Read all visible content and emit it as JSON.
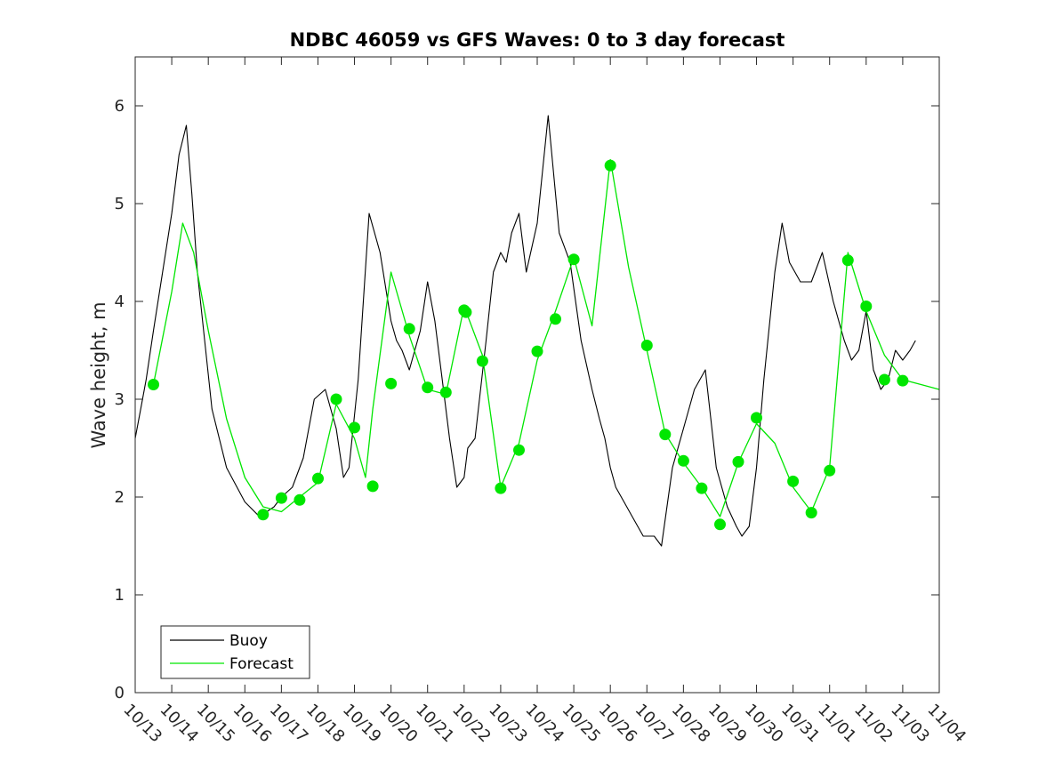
{
  "chart_data": {
    "type": "line",
    "title": "NDBC 46059 vs GFS Waves: 0 to 3 day forecast",
    "xlabel": "",
    "ylabel": "Wave height, m",
    "xlim": [
      0,
      22
    ],
    "ylim": [
      0,
      6.5
    ],
    "yticks": [
      0,
      1,
      2,
      3,
      4,
      5,
      6
    ],
    "xtick_labels": [
      "10/13",
      "10/14",
      "10/15",
      "10/16",
      "10/17",
      "10/18",
      "10/19",
      "10/20",
      "10/21",
      "10/22",
      "10/23",
      "10/24",
      "10/25",
      "10/26",
      "10/27",
      "10/28",
      "10/29",
      "10/30",
      "10/31",
      "11/01",
      "11/02",
      "11/03",
      "11/04"
    ],
    "x_units": "days since 10/13 00:00",
    "legend": {
      "location": "bottom-left",
      "entries": [
        "Buoy",
        "Forecast"
      ]
    },
    "colors": {
      "buoy": "#000000",
      "forecast": "#00e600",
      "axes": "#262626"
    },
    "series": [
      {
        "name": "Buoy",
        "x": [
          0,
          0.15,
          0.3,
          0.5,
          0.75,
          1.0,
          1.2,
          1.4,
          1.55,
          1.7,
          1.9,
          2.1,
          2.5,
          3.0,
          3.4,
          3.6,
          3.8,
          4.0,
          4.3,
          4.6,
          4.9,
          5.2,
          5.5,
          5.7,
          5.85,
          6.1,
          6.4,
          6.7,
          7.0,
          7.15,
          7.3,
          7.5,
          7.8,
          8.0,
          8.2,
          8.4,
          8.6,
          8.8,
          9.0,
          9.1,
          9.3,
          9.6,
          9.8,
          10.0,
          10.15,
          10.3,
          10.5,
          10.7,
          11.0,
          11.3,
          11.6,
          11.9,
          12.2,
          12.5,
          12.7,
          12.85,
          13.0,
          13.15,
          13.3,
          13.6,
          13.9,
          14.2,
          14.4,
          14.7,
          15.0,
          15.3,
          15.6,
          15.9,
          16.2,
          16.45,
          16.6,
          16.8,
          17.0,
          17.2,
          17.5,
          17.7,
          17.9,
          18.2,
          18.5,
          18.8,
          19.1,
          19.4,
          19.6,
          19.8,
          20.0,
          20.2,
          20.4,
          20.6,
          20.8,
          21.0,
          21.2,
          21.35
        ],
        "values": [
          2.6,
          2.9,
          3.2,
          3.7,
          4.3,
          4.9,
          5.5,
          5.8,
          5.1,
          4.3,
          3.6,
          2.9,
          2.3,
          1.95,
          1.8,
          1.85,
          1.9,
          2.0,
          2.1,
          2.4,
          3.0,
          3.1,
          2.7,
          2.2,
          2.3,
          3.2,
          4.9,
          4.5,
          3.8,
          3.6,
          3.5,
          3.3,
          3.7,
          4.2,
          3.8,
          3.2,
          2.6,
          2.1,
          2.2,
          2.5,
          2.6,
          3.6,
          4.3,
          4.5,
          4.4,
          4.7,
          4.9,
          4.3,
          4.8,
          5.9,
          4.7,
          4.4,
          3.6,
          3.1,
          2.8,
          2.6,
          2.3,
          2.1,
          2.0,
          1.8,
          1.6,
          1.6,
          1.5,
          2.3,
          2.7,
          3.1,
          3.3,
          2.3,
          1.9,
          1.7,
          1.6,
          1.7,
          2.3,
          3.2,
          4.3,
          4.8,
          4.4,
          4.2,
          4.2,
          4.5,
          4.0,
          3.6,
          3.4,
          3.5,
          3.9,
          3.3,
          3.1,
          3.2,
          3.5,
          3.4,
          3.5,
          3.6
        ]
      },
      {
        "name": "Forecast",
        "x": [
          0.5,
          1.0,
          1.3,
          1.6,
          2.0,
          2.5,
          3.0,
          3.5,
          4.0,
          4.5,
          5.0,
          5.5,
          6.0,
          6.3,
          6.5,
          7.0,
          7.5,
          8.0,
          8.5,
          9.0,
          9.5,
          10.0,
          10.5,
          11.0,
          11.5,
          12.0,
          12.5,
          13.0,
          13.5,
          14.0,
          14.5,
          15.0,
          15.5,
          16.0,
          16.5,
          17.0,
          17.5,
          18.0,
          18.5,
          19.0,
          19.5,
          20.0,
          20.5,
          21.0,
          21.5,
          22.0
        ],
        "values": [
          3.15,
          4.1,
          4.8,
          4.5,
          3.7,
          2.8,
          2.2,
          1.9,
          1.85,
          2.0,
          2.15,
          2.95,
          2.6,
          2.2,
          2.9,
          4.3,
          3.65,
          3.1,
          3.05,
          3.95,
          3.45,
          2.1,
          2.55,
          3.4,
          3.9,
          4.45,
          3.75,
          5.45,
          4.35,
          3.5,
          2.65,
          2.35,
          2.1,
          1.8,
          2.35,
          2.75,
          2.55,
          2.1,
          1.85,
          2.3,
          4.5,
          3.9,
          3.45,
          3.2,
          3.15,
          3.1
        ]
      }
    ],
    "forecast_markers": {
      "x": [
        0.5,
        3.5,
        4.0,
        4.5,
        5.0,
        5.5,
        6.0,
        6.5,
        7.0,
        7.5,
        8.0,
        8.5,
        9.0,
        9.05,
        9.5,
        10.0,
        10.5,
        11.0,
        11.5,
        12.0,
        13.0,
        14.0,
        14.5,
        15.0,
        15.5,
        16.0,
        16.5,
        17.0,
        18.0,
        18.5,
        19.0,
        19.5,
        20.0,
        20.5,
        21.0
      ],
      "values": [
        3.15,
        1.82,
        1.99,
        1.97,
        2.19,
        3.0,
        2.71,
        2.11,
        3.16,
        3.72,
        3.12,
        3.07,
        3.91,
        3.89,
        3.39,
        2.09,
        2.48,
        3.49,
        3.82,
        4.43,
        5.39,
        3.55,
        2.64,
        2.37,
        2.09,
        1.72,
        2.36,
        2.81,
        2.16,
        1.84,
        2.27,
        4.42,
        3.95,
        3.2,
        3.19
      ]
    }
  }
}
